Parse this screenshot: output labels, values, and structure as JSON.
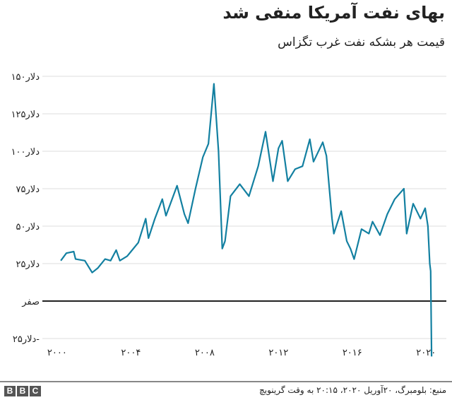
{
  "chart_data": {
    "type": "line",
    "title": "بهای نفت آمریکا منفی شد",
    "subtitle": "قیمت هر بشکه نفت غرب تگزاس",
    "ylim": [
      -25,
      150
    ],
    "xlim": [
      1999.2,
      2021.1
    ],
    "yticks": [
      {
        "value": 150,
        "label": "۱۵۰دلار"
      },
      {
        "value": 125,
        "label": "۱۲۵دلار"
      },
      {
        "value": 100,
        "label": "۱۰۰دلار"
      },
      {
        "value": 75,
        "label": "۷۵دلار"
      },
      {
        "value": 50,
        "label": "۵۰دلار"
      },
      {
        "value": 25,
        "label": "۲۵دلار"
      },
      {
        "value": 0,
        "label": "صفر"
      },
      {
        "value": -25,
        "label": "۲۵دلار-"
      }
    ],
    "xticks": [
      {
        "value": 2000,
        "label": "۲۰۰۰"
      },
      {
        "value": 2004,
        "label": "۲۰۰۴"
      },
      {
        "value": 2008,
        "label": "۲۰۰۸"
      },
      {
        "value": 2012,
        "label": "۲۰۱۲"
      },
      {
        "value": 2016,
        "label": "۲۰۱۶"
      },
      {
        "value": 2020,
        "label": "۲۰۲۰"
      }
    ],
    "grid": true,
    "line_color": "#1380a1",
    "x": [
      2000.2,
      2000.5,
      2000.9,
      2001.0,
      2001.5,
      2001.9,
      2002.2,
      2002.6,
      2002.9,
      2003.2,
      2003.4,
      2003.8,
      2004.0,
      2004.4,
      2004.8,
      2004.95,
      2005.3,
      2005.7,
      2005.9,
      2006.5,
      2006.9,
      2007.1,
      2007.5,
      2007.9,
      2008.2,
      2008.5,
      2008.75,
      2008.95,
      2009.1,
      2009.4,
      2009.9,
      2010.4,
      2010.9,
      2011.3,
      2011.7,
      2012.0,
      2012.2,
      2012.5,
      2012.9,
      2013.3,
      2013.7,
      2013.9,
      2014.4,
      2014.6,
      2014.9,
      2015.0,
      2015.4,
      2015.7,
      2015.9,
      2016.1,
      2016.5,
      2016.9,
      2017.1,
      2017.5,
      2017.9,
      2018.3,
      2018.8,
      2018.95,
      2019.3,
      2019.7,
      2019.95,
      2020.1,
      2020.2,
      2020.25,
      2020.3
    ],
    "values": [
      27,
      32,
      33,
      28,
      27,
      19,
      22,
      28,
      27,
      34,
      27,
      30,
      33,
      39,
      55,
      42,
      55,
      68,
      57,
      77,
      58,
      52,
      75,
      96,
      105,
      145,
      100,
      35,
      40,
      70,
      78,
      70,
      90,
      113,
      80,
      102,
      107,
      80,
      88,
      90,
      108,
      93,
      106,
      97,
      55,
      45,
      60,
      40,
      35,
      28,
      48,
      45,
      53,
      44,
      58,
      68,
      75,
      45,
      65,
      55,
      62,
      50,
      25,
      20,
      -37
    ]
  },
  "footer": {
    "source": "منبع: بلومبرگ، ۲۰آوریل ۲۰۲۰، ۲۰:۱۵ به وقت گرینویچ",
    "logo": [
      "B",
      "B",
      "C"
    ]
  }
}
